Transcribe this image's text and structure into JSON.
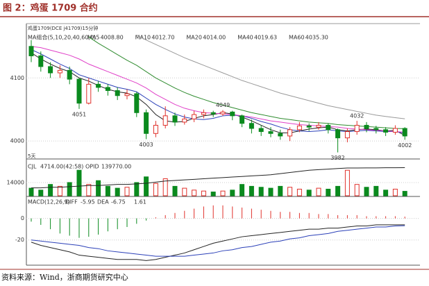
{
  "header": {
    "title": "图 2：鸡蛋 1709 合约"
  },
  "footer": {
    "source": "资料来源：Wind，浙商期货研究中心"
  },
  "chart_data": [
    {
      "type": "candlestick",
      "title": "鸡蛋1709(DCE j41709)15分钟",
      "subtitle": "MA组合(5,10,20,40,60,0)",
      "period_label": "5天",
      "up_color": "#e0302a",
      "down_color": "#0a8a1e",
      "open": [
        4150,
        4135,
        4118,
        4108,
        4112,
        4098,
        4060,
        4090,
        4085,
        4080,
        4072,
        4075,
        4045,
        4012,
        4025,
        4040,
        4030,
        4035,
        4042,
        4045,
        4043,
        4046,
        4040,
        4028,
        4020,
        4015,
        4012,
        4008,
        4018,
        4024,
        4022,
        4025,
        4018,
        4005,
        4015,
        4025,
        4020,
        4018,
        4014,
        4020
      ],
      "high": [
        4160,
        4142,
        4125,
        4120,
        4118,
        4100,
        4100,
        4095,
        4090,
        4085,
        4082,
        4078,
        4050,
        4032,
        4055,
        4045,
        4042,
        4048,
        4050,
        4048,
        4049,
        4048,
        4042,
        4034,
        4025,
        4022,
        4018,
        4022,
        4030,
        4028,
        4030,
        4028,
        4020,
        4020,
        4032,
        4030,
        4024,
        4022,
        4025,
        4022
      ],
      "low": [
        4125,
        4110,
        4100,
        4100,
        4090,
        4051,
        4058,
        4078,
        4072,
        4065,
        4066,
        4038,
        4003,
        4006,
        4020,
        4024,
        4026,
        4030,
        4036,
        4038,
        4040,
        4033,
        4022,
        4012,
        4008,
        4006,
        4002,
        4000,
        4014,
        4016,
        4018,
        4012,
        3982,
        3998,
        4010,
        4014,
        4012,
        4008,
        4010,
        4002
      ],
      "close": [
        4135,
        4118,
        4108,
        4112,
        4098,
        4060,
        4090,
        4085,
        4080,
        4072,
        4075,
        4045,
        4012,
        4025,
        4040,
        4030,
        4035,
        4042,
        4045,
        4043,
        4046,
        4040,
        4028,
        4020,
        4015,
        4012,
        4008,
        4018,
        4024,
        4022,
        4025,
        4018,
        4005,
        4015,
        4025,
        4020,
        4018,
        4014,
        4020,
        4008
      ],
      "ylim": [
        3976,
        4174
      ],
      "yticks": [
        4000,
        4100
      ],
      "grid": true,
      "series": [
        {
          "name": "MA5",
          "color": "#222222",
          "current": {
            "value": 4008.8,
            "label": "4008.80"
          },
          "values": [
            4140,
            4130,
            4122,
            4115,
            4110,
            4100,
            4095,
            4088,
            4082,
            4078,
            4076,
            4070,
            4058,
            4042,
            4032,
            4030,
            4031,
            4036,
            4040,
            4042,
            4045,
            4043,
            4038,
            4032,
            4025,
            4018,
            4013,
            4013,
            4016,
            4019,
            4021,
            4022,
            4018,
            4016,
            4018,
            4019,
            4018,
            4016,
            4017,
            4008.8
          ]
        },
        {
          "name": "MA10",
          "color": "#2a3fb8",
          "current": {
            "value": 4012.7,
            "label": "4012.70"
          },
          "values": [
            4145,
            4138,
            4130,
            4122,
            4115,
            4105,
            4100,
            4095,
            4090,
            4085,
            4082,
            4078,
            4068,
            4058,
            4050,
            4043,
            4038,
            4035,
            4034,
            4036,
            4040,
            4041,
            4040,
            4036,
            4031,
            4027,
            4022,
            4018,
            4016,
            4015,
            4016,
            4018,
            4016,
            4015,
            4016,
            4017,
            4016,
            4015,
            4015,
            4012.7
          ]
        },
        {
          "name": "MA20",
          "color": "#e040c8",
          "current": {
            "value": 4014,
            "label": "4014.00"
          },
          "values": [
            4150,
            4148,
            4144,
            4140,
            4136,
            4130,
            4122,
            4116,
            4110,
            4104,
            4098,
            4092,
            4084,
            4074,
            4066,
            4058,
            4052,
            4048,
            4045,
            4044,
            4043,
            4042,
            4040,
            4038,
            4035,
            4032,
            4030,
            4028,
            4026,
            4025,
            4024,
            4023,
            4022,
            4020,
            4019,
            4018,
            4017,
            4016,
            4015,
            4014
          ]
        },
        {
          "name": "MA40",
          "color": "#2e8b2e",
          "current": {
            "value": 4019.63,
            "label": "4019.63"
          },
          "values": [
            null,
            null,
            null,
            null,
            null,
            null,
            4165,
            4155,
            4146,
            4137,
            4128,
            4120,
            4110,
            4100,
            4092,
            4084,
            4077,
            4071,
            4066,
            4061,
            4057,
            4053,
            4049,
            4045,
            4042,
            4039,
            4036,
            4034,
            4032,
            4030,
            4029,
            4028,
            4026,
            4025,
            4024,
            4023,
            4022,
            4021,
            4020,
            4019.63
          ]
        },
        {
          "name": "MA60",
          "color": "#999999",
          "current": {
            "value": 4035.3,
            "label": "4035.30"
          },
          "values": [
            null,
            null,
            null,
            null,
            null,
            null,
            null,
            null,
            null,
            null,
            null,
            4168,
            4160,
            4153,
            4146,
            4139,
            4132,
            4126,
            4120,
            4114,
            4108,
            4102,
            4096,
            4091,
            4086,
            4081,
            4076,
            4072,
            4068,
            4064,
            4060,
            4056,
            4053,
            4050,
            4047,
            4044,
            4041,
            4039,
            4037,
            4035.3
          ]
        }
      ],
      "annotations": [
        {
          "value": 4051,
          "at": 5,
          "side": "below"
        },
        {
          "value": 4003,
          "at": 12,
          "side": "below"
        },
        {
          "value": 4049,
          "at": 20,
          "side": "above"
        },
        {
          "value": 3982,
          "at": 32,
          "side": "below"
        },
        {
          "value": 4032,
          "at": 34,
          "side": "above"
        },
        {
          "value": 4002,
          "at": 39,
          "side": "below"
        }
      ]
    },
    {
      "type": "bar",
      "name": "CJL",
      "current": "4714.00(42:58)",
      "line_name": "OPID",
      "line_current": "139770.00",
      "values": [
        8000,
        6000,
        12000,
        10000,
        14000,
        27000,
        12000,
        16000,
        10000,
        8000,
        9000,
        14000,
        20000,
        13000,
        18000,
        10000,
        8000,
        6000,
        5000,
        4000,
        5000,
        6000,
        12000,
        10000,
        9000,
        8000,
        10000,
        9000,
        7000,
        6000,
        8000,
        7000,
        10000,
        27000,
        12000,
        9000,
        10000,
        6000,
        7000,
        4714
      ],
      "ylim": [
        0,
        36000
      ],
      "yticks": [
        14000
      ],
      "grid": true,
      "series": [
        {
          "name": "OPID",
          "color": "#222222",
          "axis": "y2",
          "values": [
            122000,
            122000,
            122500,
            122500,
            123000,
            123500,
            124000,
            124000,
            124500,
            125000,
            125000,
            125500,
            126000,
            127000,
            128000,
            128500,
            129000,
            129500,
            130000,
            130500,
            131000,
            131500,
            132000,
            132500,
            133000,
            133500,
            134500,
            135500,
            136500,
            137500,
            138000,
            138500,
            139000,
            139500,
            139500,
            139600,
            139600,
            139700,
            139700,
            139770
          ]
        }
      ],
      "y2lim": [
        115000,
        145000
      ]
    },
    {
      "type": "macd",
      "name": "MACD(12,26,9)",
      "diff_name": "DIFF",
      "diff_current": -5.95,
      "dea_name": "DEA",
      "dea_current": -6.75,
      "hist_current": 1.61,
      "values": [
        -3,
        -6,
        -10,
        -14,
        -16,
        -18,
        -17,
        -15,
        -12,
        -10,
        -8,
        -5,
        -2,
        1,
        3,
        5,
        7,
        9,
        11,
        12,
        12,
        11,
        10,
        9,
        8,
        7,
        6,
        6,
        5,
        5,
        4,
        4,
        3,
        3,
        3,
        2,
        2,
        2,
        2,
        1.61
      ],
      "ylim": [
        -42,
        19
      ],
      "yticks": [
        0,
        -20
      ],
      "grid": true,
      "up_color": "#e0302a",
      "down_color": "#0a8a1e",
      "series": [
        {
          "name": "DIFF",
          "color": "#222222",
          "values": [
            -22,
            -25,
            -27,
            -29,
            -31,
            -34,
            -35,
            -36,
            -37,
            -38,
            -38,
            -38,
            -39,
            -38,
            -36,
            -34,
            -32,
            -29,
            -26,
            -23,
            -21,
            -19,
            -17,
            -16,
            -15,
            -14,
            -13,
            -12,
            -11,
            -10,
            -10,
            -9,
            -9,
            -8,
            -7,
            -7,
            -6,
            -6,
            -6,
            -5.95
          ]
        },
        {
          "name": "DEA",
          "color": "#2a3fb8",
          "values": [
            -20,
            -21,
            -22,
            -23,
            -24,
            -25,
            -27,
            -28,
            -30,
            -31,
            -32,
            -33,
            -34,
            -35,
            -35,
            -35,
            -35,
            -34,
            -33,
            -32,
            -30,
            -29,
            -27,
            -26,
            -24,
            -22,
            -21,
            -19,
            -18,
            -16,
            -15,
            -14,
            -12,
            -11,
            -10,
            -9,
            -8,
            -8,
            -7,
            -6.75
          ]
        }
      ]
    }
  ]
}
